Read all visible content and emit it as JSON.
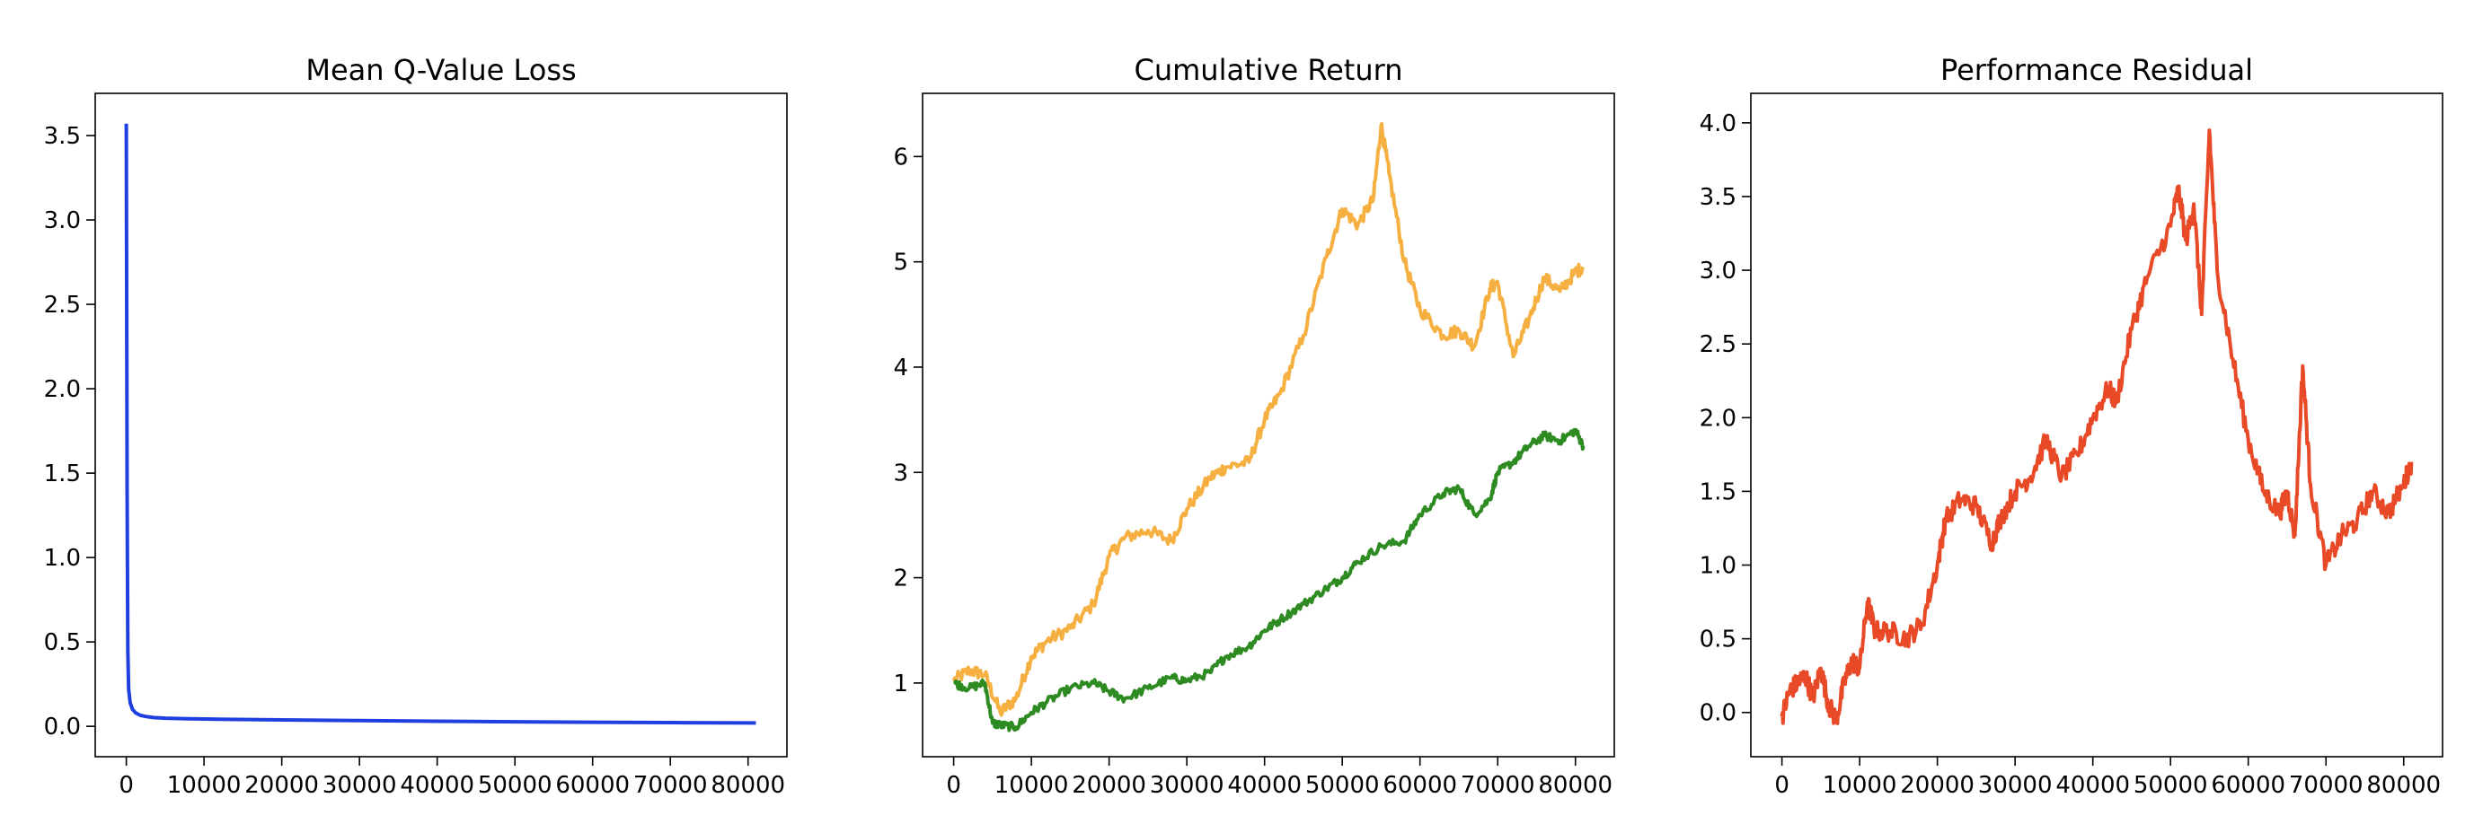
{
  "chart_data": [
    {
      "type": "line",
      "title": "Mean Q-Value Loss",
      "xlabel": "",
      "ylabel": "",
      "xlim": [
        -4000,
        85000
      ],
      "ylim": [
        -0.18,
        3.75
      ],
      "x_ticks": [
        0,
        10000,
        20000,
        30000,
        40000,
        50000,
        60000,
        70000,
        80000
      ],
      "x_tick_labels": [
        "0",
        "10000",
        "20000",
        "30000",
        "40000",
        "50000",
        "60000",
        "70000",
        "80000"
      ],
      "y_ticks": [
        0.0,
        0.5,
        1.0,
        1.5,
        2.0,
        2.5,
        3.0,
        3.5
      ],
      "y_tick_labels": [
        "0.0",
        "0.5",
        "1.0",
        "1.5",
        "2.0",
        "2.5",
        "3.0",
        "3.5"
      ],
      "grid": false,
      "series": [
        {
          "color": "#1f3ee0",
          "noise": 0.0,
          "x": [
            0,
            50,
            100,
            200,
            300,
            500,
            800,
            1200,
            1800,
            2500,
            3500,
            5000,
            8000,
            12000,
            20000,
            30000,
            40000,
            50000,
            60000,
            70000,
            81000
          ],
          "y": [
            3.57,
            2.6,
            1.4,
            0.45,
            0.22,
            0.14,
            0.1,
            0.08,
            0.065,
            0.058,
            0.052,
            0.048,
            0.045,
            0.042,
            0.038,
            0.034,
            0.03,
            0.027,
            0.024,
            0.022,
            0.02
          ]
        }
      ]
    },
    {
      "type": "line",
      "title": "Cumulative Return",
      "xlabel": "",
      "ylabel": "",
      "xlim": [
        -4000,
        85000
      ],
      "ylim": [
        0.3,
        6.6
      ],
      "x_ticks": [
        0,
        10000,
        20000,
        30000,
        40000,
        50000,
        60000,
        70000,
        80000
      ],
      "x_tick_labels": [
        "0",
        "10000",
        "20000",
        "30000",
        "40000",
        "50000",
        "60000",
        "70000",
        "80000"
      ],
      "y_ticks": [
        1,
        2,
        3,
        4,
        5,
        6
      ],
      "y_tick_labels": [
        "1",
        "2",
        "3",
        "4",
        "5",
        "6"
      ],
      "grid": false,
      "series": [
        {
          "color": "#f5b041",
          "noise": 0.06,
          "x": [
            0,
            2000,
            4000,
            6000,
            8000,
            10000,
            12000,
            15000,
            18000,
            20000,
            22000,
            25000,
            28000,
            30000,
            33000,
            35000,
            38000,
            40000,
            42000,
            45000,
            48000,
            50000,
            52000,
            54000,
            55000,
            56000,
            58000,
            60000,
            63000,
            65000,
            67000,
            69000,
            70000,
            72000,
            74000,
            76000,
            78000,
            80000,
            81000
          ],
          "y": [
            1.02,
            1.12,
            1.08,
            0.72,
            0.85,
            1.25,
            1.4,
            1.52,
            1.75,
            2.2,
            2.38,
            2.45,
            2.35,
            2.65,
            2.95,
            3.05,
            3.1,
            3.5,
            3.75,
            4.3,
            5.05,
            5.5,
            5.35,
            5.6,
            6.3,
            5.85,
            5.0,
            4.55,
            4.3,
            4.35,
            4.2,
            4.75,
            4.8,
            4.1,
            4.45,
            4.85,
            4.72,
            4.9,
            4.95
          ]
        },
        {
          "color": "#2e8b22",
          "noise": 0.04,
          "x": [
            0,
            2000,
            4000,
            5000,
            6000,
            8000,
            10000,
            12000,
            15000,
            18000,
            20000,
            22000,
            25000,
            28000,
            30000,
            33000,
            35000,
            38000,
            40000,
            42000,
            45000,
            48000,
            50000,
            52000,
            55000,
            58000,
            60000,
            63000,
            65000,
            67000,
            69000,
            70000,
            72000,
            74000,
            76000,
            78000,
            80000,
            81000
          ],
          "y": [
            1.0,
            0.95,
            1.0,
            0.62,
            0.6,
            0.58,
            0.72,
            0.82,
            0.95,
            1.0,
            0.92,
            0.85,
            0.95,
            1.05,
            1.02,
            1.1,
            1.25,
            1.35,
            1.5,
            1.6,
            1.75,
            1.9,
            2.0,
            2.15,
            2.3,
            2.35,
            2.6,
            2.8,
            2.85,
            2.6,
            2.75,
            3.0,
            3.1,
            3.25,
            3.35,
            3.3,
            3.4,
            3.25
          ]
        }
      ]
    },
    {
      "type": "line",
      "title": "Performance Residual",
      "xlabel": "",
      "ylabel": "",
      "xlim": [
        -4000,
        85000
      ],
      "ylim": [
        -0.3,
        4.2
      ],
      "x_ticks": [
        0,
        10000,
        20000,
        30000,
        40000,
        50000,
        60000,
        70000,
        80000
      ],
      "x_tick_labels": [
        "0",
        "10000",
        "20000",
        "30000",
        "40000",
        "50000",
        "60000",
        "70000",
        "80000"
      ],
      "y_ticks": [
        0.0,
        0.5,
        1.0,
        1.5,
        2.0,
        2.5,
        3.0,
        3.5,
        4.0
      ],
      "y_tick_labels": [
        "0.0",
        "0.5",
        "1.0",
        "1.5",
        "2.0",
        "2.5",
        "3.0",
        "3.5",
        "4.0"
      ],
      "grid": false,
      "series": [
        {
          "color": "#e84a27",
          "noise": 0.07,
          "x": [
            0,
            1000,
            2000,
            3000,
            4000,
            5000,
            6000,
            7000,
            8000,
            9000,
            10000,
            11000,
            12000,
            14000,
            16000,
            18000,
            20000,
            21000,
            23000,
            25000,
            27000,
            28000,
            30000,
            32000,
            34000,
            36000,
            38000,
            40000,
            42000,
            43000,
            45000,
            47000,
            50000,
            51000,
            52000,
            53000,
            54000,
            55000,
            56000,
            58000,
            60000,
            62000,
            64000,
            65000,
            66000,
            67000,
            68000,
            70000,
            72000,
            74000,
            76000,
            78000,
            80000,
            81000
          ],
          "y": [
            -0.03,
            0.15,
            0.2,
            0.25,
            0.1,
            0.3,
            0.05,
            -0.05,
            0.2,
            0.35,
            0.3,
            0.75,
            0.55,
            0.55,
            0.5,
            0.6,
            1.0,
            1.3,
            1.45,
            1.4,
            1.15,
            1.3,
            1.5,
            1.6,
            1.85,
            1.6,
            1.75,
            2.0,
            2.2,
            2.1,
            2.6,
            2.95,
            3.3,
            3.55,
            3.2,
            3.45,
            2.7,
            3.95,
            3.0,
            2.4,
            1.85,
            1.5,
            1.35,
            1.5,
            1.2,
            2.35,
            1.55,
            1.0,
            1.2,
            1.3,
            1.5,
            1.35,
            1.55,
            1.7
          ]
        }
      ]
    }
  ]
}
